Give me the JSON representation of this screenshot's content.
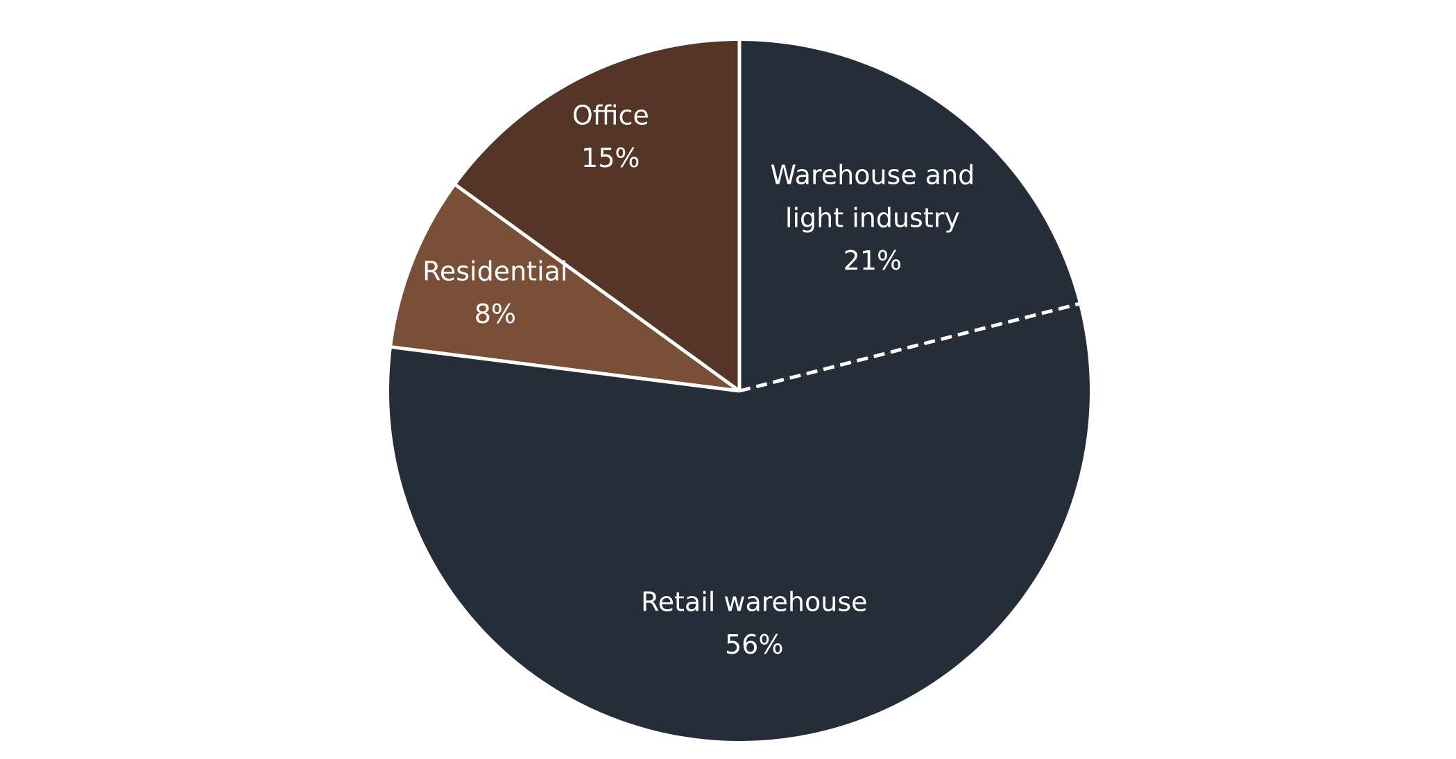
{
  "chart_data": {
    "type": "pie",
    "categories": [
      "Warehouse and light industry",
      "Retail warehouse",
      "Residential",
      "Office"
    ],
    "values": [
      21,
      56,
      8,
      15
    ],
    "value_labels": [
      "21%",
      "56%",
      "8%",
      "15%"
    ],
    "colors": [
      "#252e38",
      "#252e38",
      "#7a4f38",
      "#553526"
    ]
  }
}
